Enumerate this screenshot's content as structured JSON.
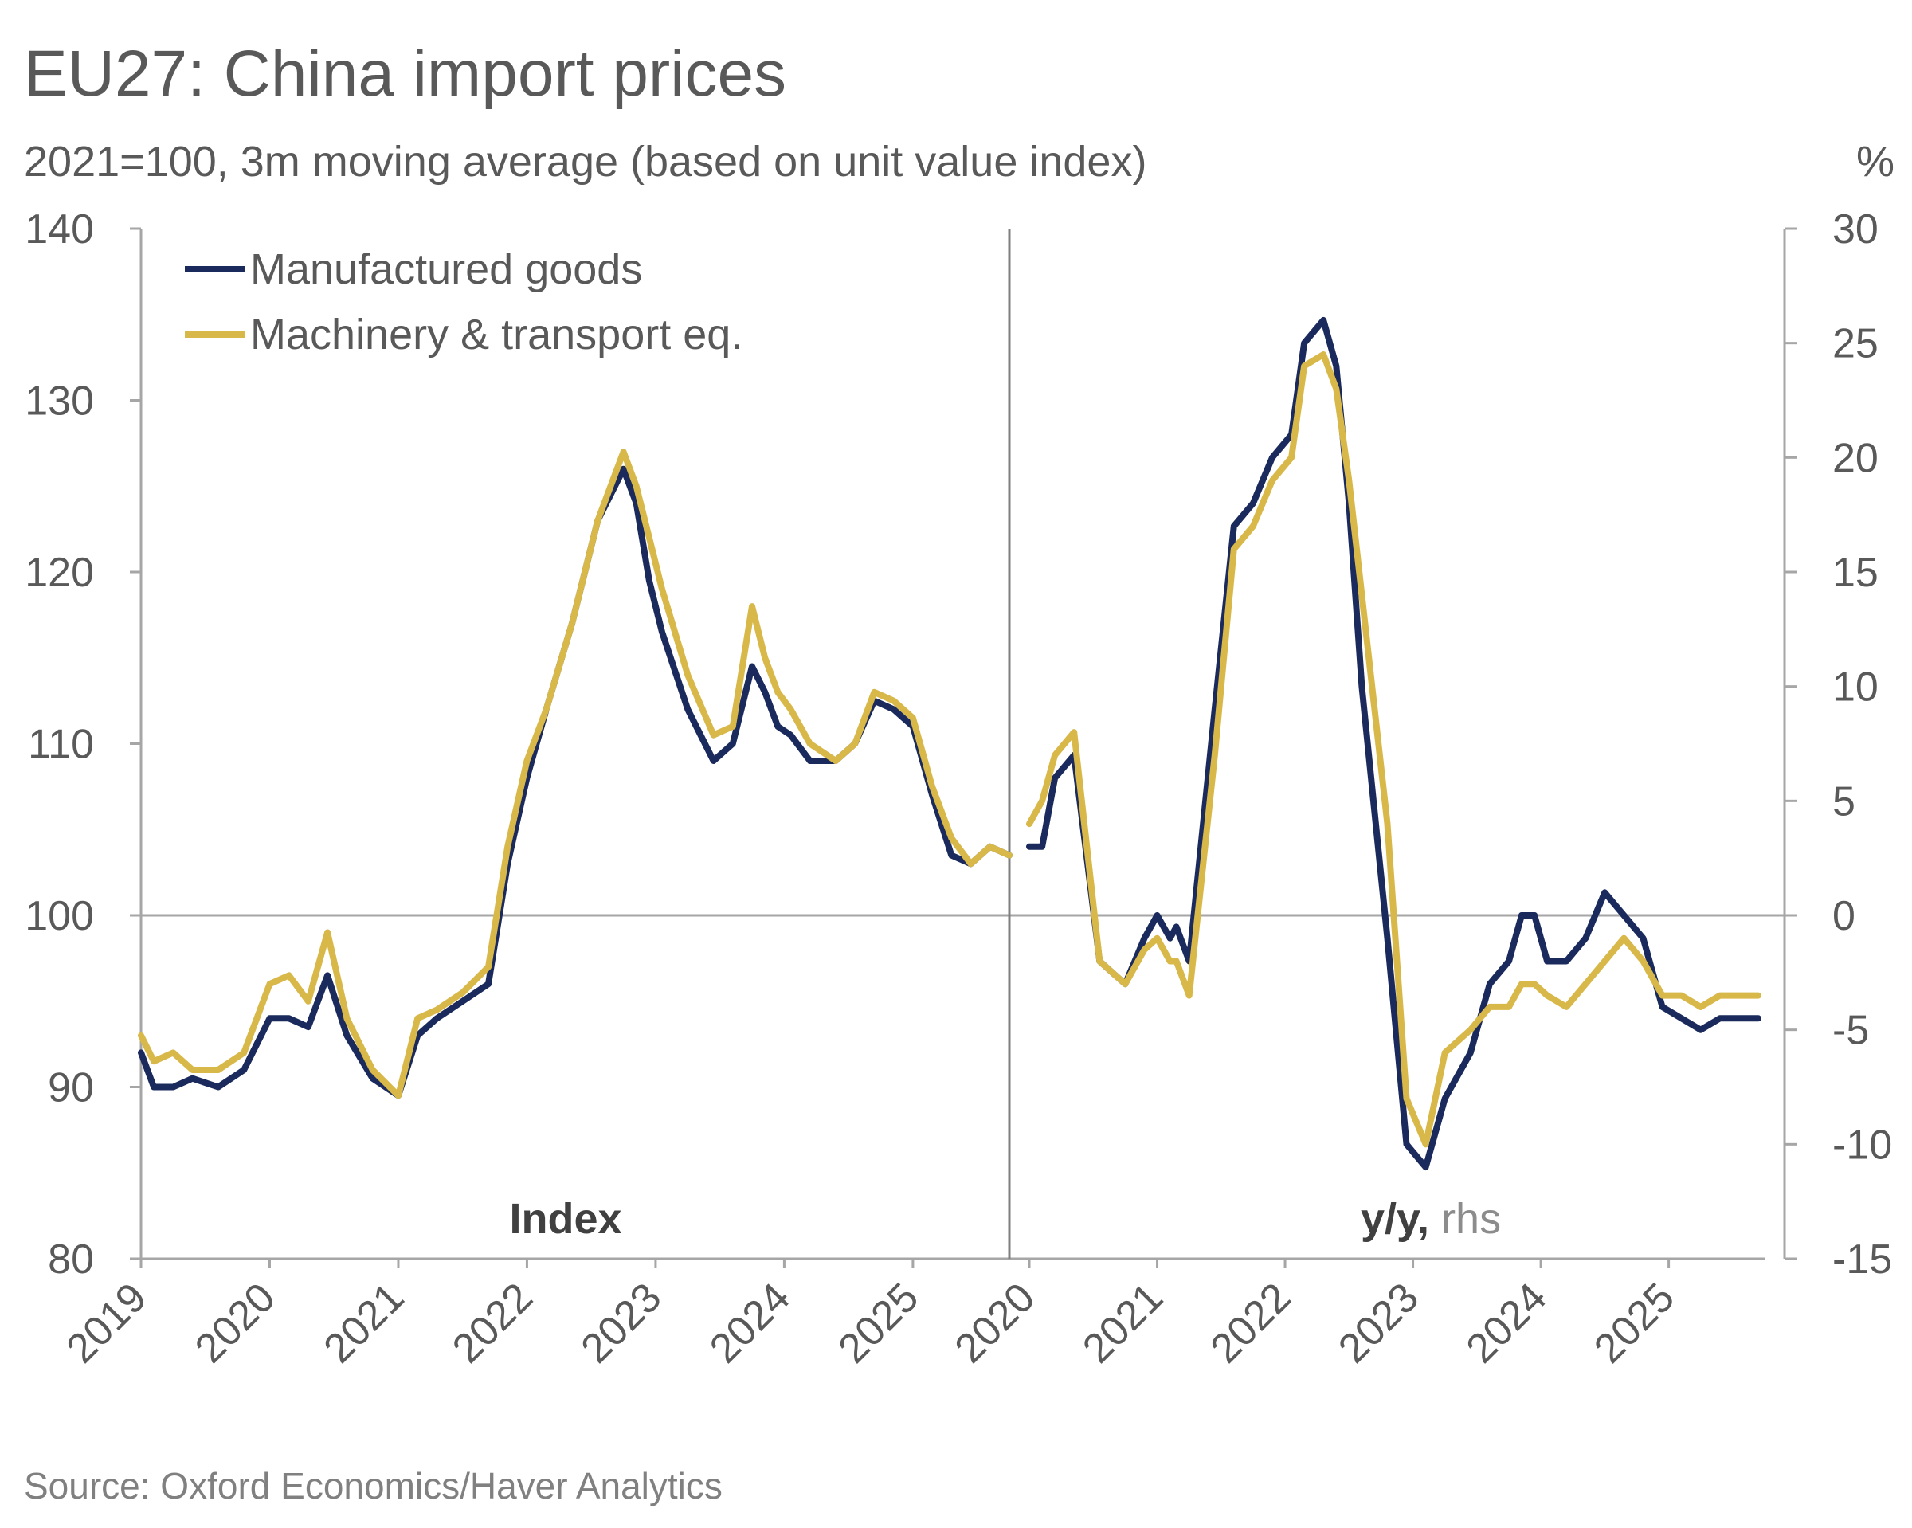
{
  "title": "EU27: China import prices",
  "subtitle": "2021=100, 3m moving average (based on unit value index)",
  "source": "Source: Oxford Economics/Haver Analytics",
  "colors": {
    "manufactured": "#1b2a5c",
    "machinery": "#d9b84a",
    "axis": "#a6a6a6",
    "text": "#595959"
  },
  "chart_data": [
    {
      "type": "line",
      "panel": "left",
      "panel_label": "Index",
      "ylim": [
        80,
        140
      ],
      "yticks": [
        80,
        90,
        100,
        110,
        120,
        130,
        140
      ],
      "xlim": [
        2019,
        2025.75
      ],
      "xticks": [
        "2019",
        "2020",
        "2021",
        "2022",
        "2023",
        "2024",
        "2025"
      ],
      "reference_line": 100,
      "legend": {
        "position": "top-left",
        "entries": [
          "Manufactured goods",
          "Machinery & transport eq."
        ]
      },
      "series": [
        {
          "name": "Manufactured goods",
          "x": [
            2019.0,
            2019.1,
            2019.25,
            2019.4,
            2019.6,
            2019.8,
            2020.0,
            2020.15,
            2020.3,
            2020.45,
            2020.6,
            2020.8,
            2021.0,
            2021.15,
            2021.3,
            2021.5,
            2021.7,
            2021.85,
            2022.0,
            2022.15,
            2022.35,
            2022.55,
            2022.75,
            2022.85,
            2022.95,
            2023.05,
            2023.25,
            2023.45,
            2023.6,
            2023.75,
            2023.85,
            2023.95,
            2024.05,
            2024.2,
            2024.4,
            2024.55,
            2024.7,
            2024.85,
            2025.0,
            2025.15,
            2025.3,
            2025.45,
            2025.6,
            2025.75
          ],
          "y": [
            92,
            90,
            90,
            90.5,
            90,
            91,
            94,
            94,
            93.5,
            96.5,
            93,
            90.5,
            89.5,
            93,
            94,
            95,
            96,
            103,
            108,
            112,
            117,
            123,
            126,
            124,
            119.5,
            116.5,
            112,
            109,
            110,
            114.5,
            113,
            111,
            110.5,
            109,
            109,
            110,
            112.5,
            112,
            111,
            107,
            103.5,
            103,
            104,
            103.5
          ]
        },
        {
          "name": "Machinery & transport eq.",
          "x": [
            2019.0,
            2019.1,
            2019.25,
            2019.4,
            2019.6,
            2019.8,
            2020.0,
            2020.15,
            2020.3,
            2020.45,
            2020.6,
            2020.8,
            2021.0,
            2021.15,
            2021.3,
            2021.5,
            2021.7,
            2021.85,
            2022.0,
            2022.15,
            2022.35,
            2022.55,
            2022.75,
            2022.85,
            2022.95,
            2023.05,
            2023.25,
            2023.45,
            2023.6,
            2023.75,
            2023.85,
            2023.95,
            2024.05,
            2024.2,
            2024.4,
            2024.55,
            2024.7,
            2024.85,
            2025.0,
            2025.15,
            2025.3,
            2025.45,
            2025.6,
            2025.75
          ],
          "y": [
            93,
            91.5,
            92,
            91,
            91,
            92,
            96,
            96.5,
            95,
            99,
            94,
            91,
            89.5,
            94,
            94.5,
            95.5,
            97,
            104,
            109,
            112,
            117,
            123,
            127,
            125,
            122,
            119,
            114,
            110.5,
            111,
            118,
            115,
            113,
            112,
            110,
            109,
            110,
            113,
            112.5,
            111.5,
            107.5,
            104.5,
            103,
            104,
            103.5
          ]
        }
      ]
    },
    {
      "type": "line",
      "panel": "right",
      "panel_label": "y/y,",
      "panel_label_suffix": "rhs",
      "ylabel": "%",
      "ylim": [
        -15,
        30
      ],
      "yticks": [
        -15,
        -10,
        -5,
        0,
        5,
        10,
        15,
        20,
        25,
        30
      ],
      "ytick_labels": [
        "-15",
        "-10",
        "-5",
        "0",
        "5",
        "10",
        "15",
        "20",
        "25",
        "30"
      ],
      "xlim": [
        2020,
        2025.75
      ],
      "xticks": [
        "2020",
        "2021",
        "2022",
        "2023",
        "2024",
        "2025"
      ],
      "reference_line": 0,
      "series": [
        {
          "name": "Manufactured goods",
          "x": [
            2020.0,
            2020.1,
            2020.2,
            2020.35,
            2020.55,
            2020.75,
            2020.9,
            2021.0,
            2021.1,
            2021.15,
            2021.25,
            2021.45,
            2021.6,
            2021.75,
            2021.9,
            2022.05,
            2022.15,
            2022.3,
            2022.4,
            2022.5,
            2022.6,
            2022.8,
            2022.95,
            2023.1,
            2023.25,
            2023.45,
            2023.6,
            2023.75,
            2023.85,
            2023.95,
            2024.05,
            2024.2,
            2024.35,
            2024.5,
            2024.65,
            2024.8,
            2024.95,
            2025.1,
            2025.25,
            2025.4,
            2025.55,
            2025.7
          ],
          "y": [
            3,
            3,
            6,
            7,
            -2,
            -3,
            -1,
            0,
            -1,
            -0.5,
            -2,
            9,
            17,
            18,
            20,
            21,
            25,
            26,
            24,
            18,
            10,
            -1,
            -10,
            -11,
            -8,
            -6,
            -3,
            -2,
            0,
            0,
            -2,
            -2,
            -1,
            1,
            0,
            -1,
            -4,
            -4.5,
            -5,
            -4.5,
            -4.5,
            -4.5
          ]
        },
        {
          "name": "Machinery & transport eq.",
          "x": [
            2020.0,
            2020.1,
            2020.2,
            2020.35,
            2020.55,
            2020.75,
            2020.9,
            2021.0,
            2021.1,
            2021.15,
            2021.25,
            2021.45,
            2021.6,
            2021.75,
            2021.9,
            2022.05,
            2022.15,
            2022.3,
            2022.4,
            2022.5,
            2022.6,
            2022.8,
            2022.95,
            2023.1,
            2023.25,
            2023.45,
            2023.6,
            2023.75,
            2023.85,
            2023.95,
            2024.05,
            2024.2,
            2024.35,
            2024.5,
            2024.65,
            2024.8,
            2024.95,
            2025.1,
            2025.25,
            2025.4,
            2025.55,
            2025.7
          ],
          "y": [
            4,
            5,
            7,
            8,
            -2,
            -3,
            -1.5,
            -1,
            -2,
            -2,
            -3.5,
            7,
            16,
            17,
            19,
            20,
            24,
            24.5,
            23,
            19,
            14,
            4,
            -8,
            -10,
            -6,
            -5,
            -4,
            -4,
            -3,
            -3,
            -3.5,
            -4,
            -3,
            -2,
            -1,
            -2,
            -3.5,
            -3.5,
            -4,
            -3.5,
            -3.5,
            -3.5
          ]
        }
      ]
    }
  ]
}
